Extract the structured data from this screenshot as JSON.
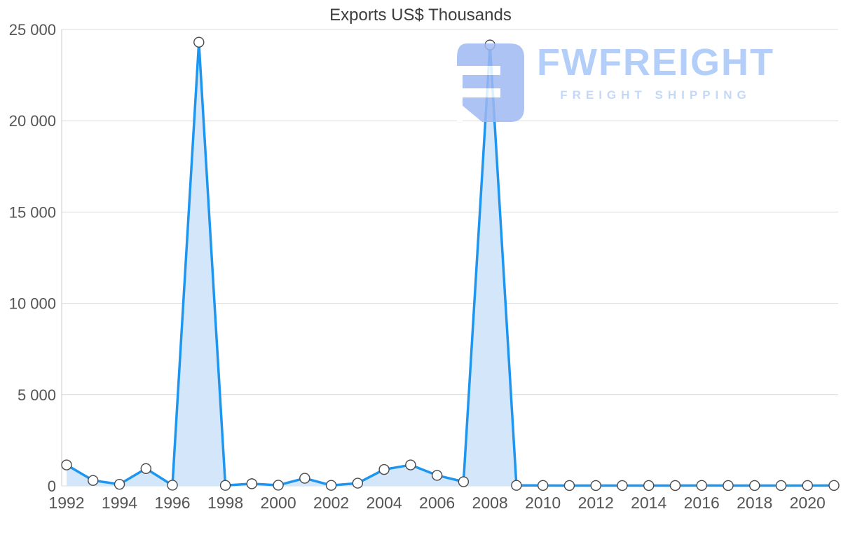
{
  "chart": {
    "colors": {
      "line": "#1E96F0",
      "area_fill": "#D4E7FA",
      "marker_fill": "#FFFFFF",
      "marker_stroke": "#4A4A4A",
      "grid": "#DCDCDC",
      "axis": "#C8C8C8",
      "tick_text": "#555555",
      "title_text": "#3D3D3D"
    }
  },
  "watermark": {
    "title": "FWFREIGHT",
    "subtitle": "FREIGHT SHIPPING",
    "logo": "fwfreight-logo",
    "logo_color": "#9FB9F2",
    "text_color": "#A6C6F7"
  },
  "chart_data": {
    "type": "area",
    "title": "Exports US$ Thousands",
    "xlabel": "",
    "ylabel": "",
    "x": [
      1992,
      1993,
      1994,
      1995,
      1996,
      1997,
      1998,
      1999,
      2000,
      2001,
      2002,
      2003,
      2004,
      2005,
      2006,
      2007,
      2008,
      2009,
      2010,
      2011,
      2012,
      2013,
      2014,
      2015,
      2016,
      2017,
      2018,
      2019,
      2020,
      2021
    ],
    "values": [
      1150,
      300,
      90,
      950,
      40,
      24300,
      30,
      120,
      40,
      420,
      30,
      150,
      900,
      1150,
      580,
      230,
      24150,
      30,
      25,
      20,
      20,
      20,
      20,
      20,
      25,
      20,
      20,
      20,
      20,
      25
    ],
    "ylim": [
      0,
      25000
    ],
    "yticks": [
      0,
      5000,
      10000,
      15000,
      20000,
      25000
    ],
    "ytick_labels": [
      "0",
      "5 000",
      "10 000",
      "15 000",
      "20 000",
      "25 000"
    ],
    "xtick_labels": [
      "1992",
      "1994",
      "1996",
      "1998",
      "2000",
      "2002",
      "2004",
      "2006",
      "2008",
      "2010",
      "2012",
      "2014",
      "2016",
      "2018",
      "2020"
    ],
    "grid": true,
    "legend": false,
    "marker": "circle"
  }
}
